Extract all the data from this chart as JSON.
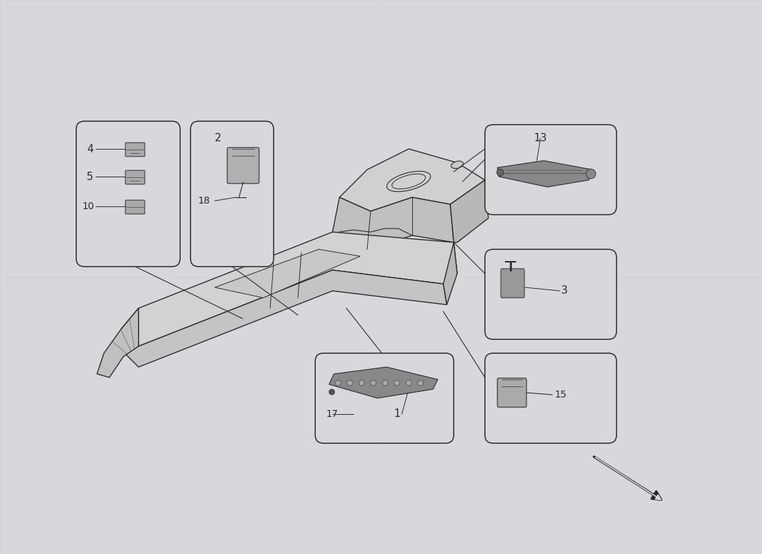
{
  "bg_color": "#d8d8dc",
  "line_color": "#2a2a2a",
  "box_bg": "#d8d8dc",
  "box_edge": "#444444",
  "arrow_color": "#2a2a2a",
  "figsize": [
    11.0,
    8.0
  ],
  "dpi": 100
}
